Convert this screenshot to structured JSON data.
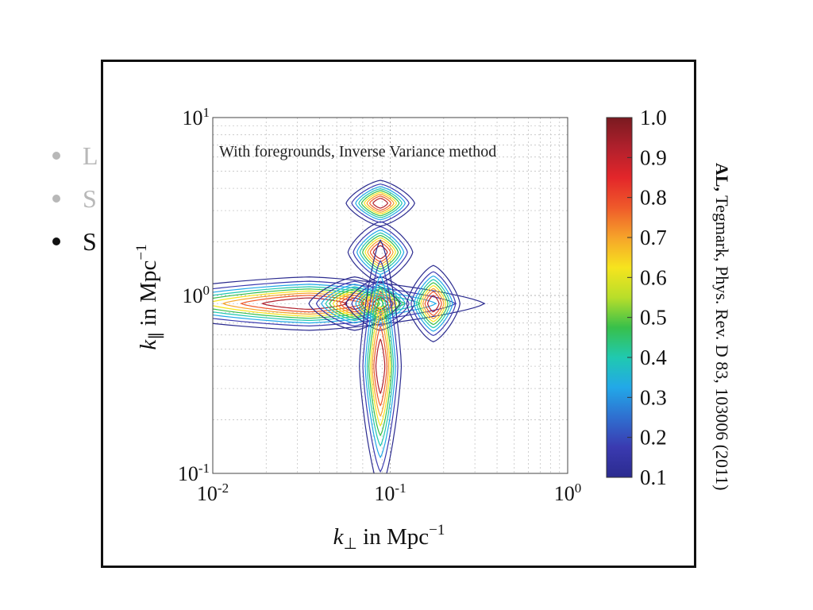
{
  "slide": {
    "bullets": [
      {
        "text": "L",
        "color": "#b8b8b8"
      },
      {
        "text": "S",
        "color": "#b8b8b8"
      },
      {
        "text": "S",
        "color": "#111111"
      }
    ]
  },
  "citation": {
    "authors": "AL,",
    "rest": " Tegmark, Phys. Rev. D 83, 103006 (2011)"
  },
  "chart_data": {
    "type": "heatmap",
    "subtype": "contour",
    "annotation": "With foregrounds, Inverse Variance method",
    "xlabel_parts": {
      "sym": "k",
      "sub": "⊥",
      "text": " in Mpc",
      "sup": "−1"
    },
    "ylabel_parts": {
      "sym": "k",
      "sub": "∥",
      "text": " in Mpc",
      "sup": "−1"
    },
    "x_scale": "log",
    "y_scale": "log",
    "xlim": [
      0.01,
      1
    ],
    "ylim": [
      0.1,
      10
    ],
    "x_ticks": [
      {
        "base": "10",
        "exp": "-2"
      },
      {
        "base": "10",
        "exp": "-1"
      },
      {
        "base": "10",
        "exp": "0"
      }
    ],
    "y_ticks": [
      {
        "base": "10",
        "exp": "1"
      },
      {
        "base": "10",
        "exp": "0"
      },
      {
        "base": "10",
        "exp": "-1"
      }
    ],
    "grid": true,
    "colorbar": {
      "min": 0.1,
      "max": 1.0,
      "ticks": [
        "1.0",
        "0.9",
        "0.8",
        "0.7",
        "0.6",
        "0.5",
        "0.4",
        "0.3",
        "0.2",
        "0.1"
      ],
      "colors": [
        "#2b2b8f",
        "#3a3ab0",
        "#2f6fd0",
        "#22a8e8",
        "#20c9b0",
        "#38c04a",
        "#b8de2a",
        "#f6e41e",
        "#f6a32a",
        "#ef5a2a",
        "#e3262a",
        "#b0202c",
        "#7a1a20"
      ]
    },
    "levels": [
      0.1,
      0.2,
      0.3,
      0.4,
      0.5,
      0.6,
      0.7,
      0.8,
      0.9
    ],
    "peaks": [
      {
        "kx": 0.035,
        "ky": 0.9,
        "wx": 0.46,
        "wy": 0.07,
        "tail": 1.0
      },
      {
        "kx": 0.063,
        "ky": 0.9,
        "wx": 0.12,
        "wy": 0.07,
        "tail": 0.0
      },
      {
        "kx": 0.088,
        "ky": 0.9,
        "wx": 0.09,
        "wy": 0.07,
        "tail": 0.0
      },
      {
        "kx": 0.175,
        "ky": 0.9,
        "wx": 0.07,
        "wy": 0.1,
        "tail": 0.0
      },
      {
        "kx": 0.088,
        "ky": 1.75,
        "wx": 0.085,
        "wy": 0.08,
        "tail": 0.0
      },
      {
        "kx": 0.088,
        "ky": 3.3,
        "wx": 0.09,
        "wy": 0.06,
        "tail": 0.0
      },
      {
        "kx": 0.088,
        "ky": 0.4,
        "wx": 0.055,
        "wy": 0.33,
        "tail": 0.0
      }
    ]
  }
}
